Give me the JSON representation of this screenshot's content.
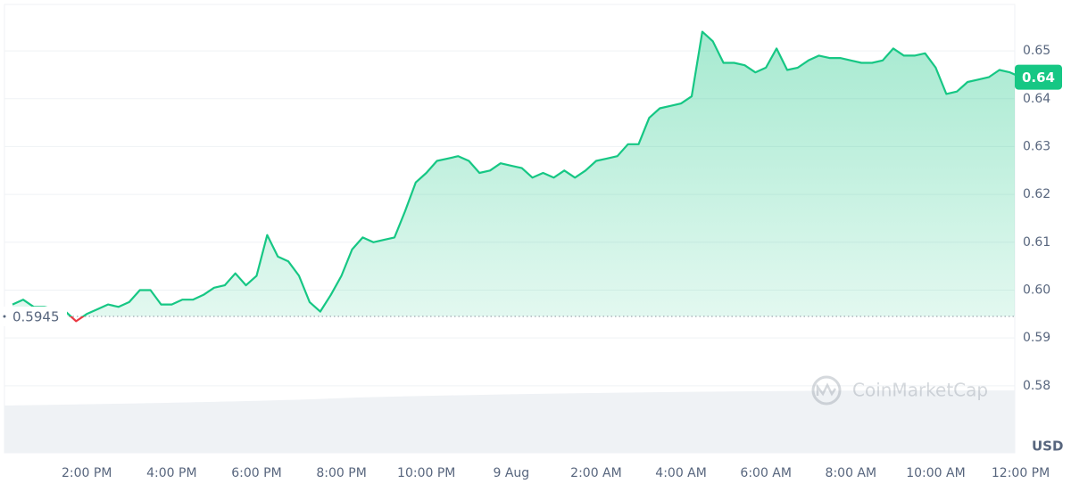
{
  "chart_data": {
    "type": "line",
    "color": "#16c784",
    "down_color": "#ea3943",
    "categories": [
      null,
      null,
      null,
      null,
      null,
      null,
      null,
      "2:00 PM",
      null,
      null,
      null,
      null,
      null,
      null,
      null,
      "4:00 PM",
      null,
      null,
      null,
      null,
      null,
      null,
      null,
      "6:00 PM",
      null,
      null,
      null,
      null,
      null,
      null,
      null,
      "8:00 PM",
      null,
      null,
      null,
      null,
      null,
      null,
      null,
      "10:00 PM",
      null,
      null,
      null,
      null,
      null,
      null,
      null,
      "9 Aug",
      null,
      null,
      null,
      null,
      null,
      null,
      null,
      "2:00 AM",
      null,
      null,
      null,
      null,
      null,
      null,
      null,
      "4:00 AM",
      null,
      null,
      null,
      null,
      null,
      null,
      null,
      "6:00 AM",
      null,
      null,
      null,
      null,
      null,
      null,
      null,
      "8:00 AM",
      null,
      null,
      null,
      null,
      null,
      null,
      null,
      "10:00 AM",
      null,
      null,
      null,
      null,
      null,
      null,
      null,
      "12:00 PM"
    ],
    "values": [
      0.597,
      0.598,
      0.5965,
      0.5965,
      0.596,
      0.5955,
      0.5935,
      0.595,
      0.596,
      0.597,
      0.5965,
      0.5975,
      0.6,
      0.6,
      0.597,
      0.597,
      0.598,
      0.598,
      0.599,
      0.6005,
      0.601,
      0.6035,
      0.601,
      0.603,
      0.6115,
      0.607,
      0.606,
      0.603,
      0.5975,
      0.5955,
      0.599,
      0.603,
      0.6085,
      0.611,
      0.61,
      0.6105,
      0.611,
      0.6165,
      0.6225,
      0.6245,
      0.627,
      0.6275,
      0.628,
      0.627,
      0.6245,
      0.625,
      0.6265,
      0.626,
      0.6255,
      0.6235,
      0.6245,
      0.6235,
      0.625,
      0.6235,
      0.625,
      0.627,
      0.6275,
      0.628,
      0.6305,
      0.6305,
      0.636,
      0.638,
      0.6385,
      0.639,
      0.6405,
      0.654,
      0.652,
      0.6475,
      0.6475,
      0.647,
      0.6455,
      0.6465,
      0.6505,
      0.646,
      0.6465,
      0.648,
      0.649,
      0.6485,
      0.6485,
      0.648,
      0.6475,
      0.6475,
      0.648,
      0.6505,
      0.649,
      0.649,
      0.6495,
      0.6465,
      0.641,
      0.6415,
      0.6435,
      0.644,
      0.6445,
      0.646,
      0.6455,
      0.6445
    ],
    "last_label": "0.64",
    "reference_line": {
      "value": 0.5945,
      "label": "0.5945"
    },
    "ylim": [
      0.566,
      0.6597
    ],
    "yticks": [
      0.58,
      0.59,
      {
        "value": 0.6,
        "label": "0.60"
      },
      0.61,
      0.62,
      0.63,
      0.64,
      0.65
    ],
    "grid": true,
    "y_unit": "USD",
    "watermark": "CoinMarketCap"
  }
}
